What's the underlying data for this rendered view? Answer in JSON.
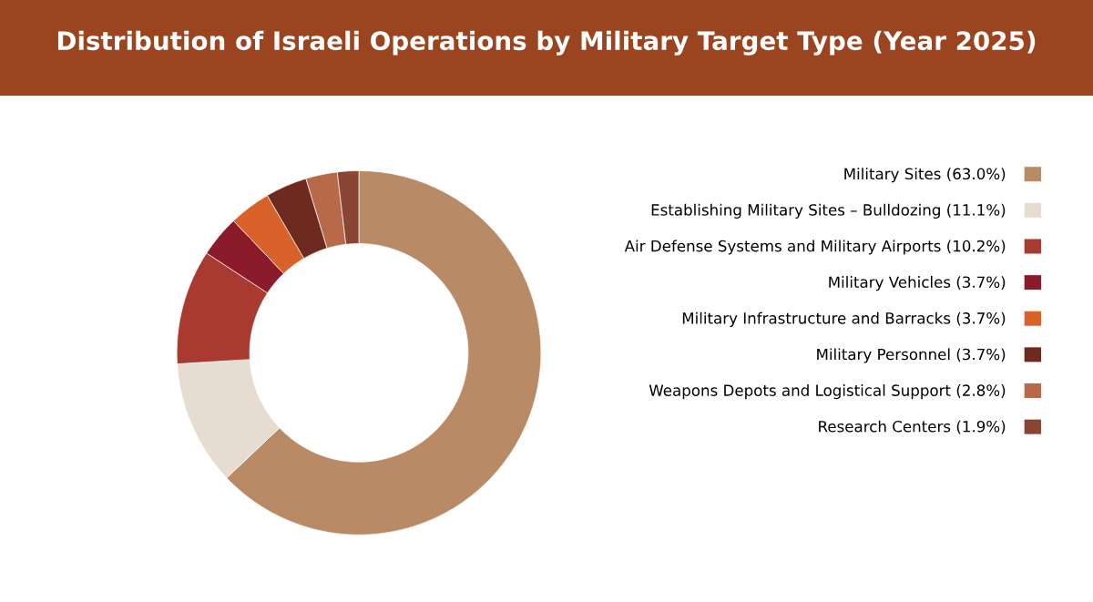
{
  "chart_data": {
    "type": "donut",
    "title": "Distribution of Israeli Operations by Military Target Type (Year 2025)",
    "categories": [
      "Military Sites (63.0%)",
      "Establishing Military Sites – Bulldozing (11.1%)",
      "Air Defense Systems and Military Airports (10.2%)",
      "Military Vehicles (3.7%)",
      "Military Infrastructure and Barracks (3.7%)",
      "Military Personnel (3.7%)",
      "Weapons Depots and Logistical Support (2.8%)",
      "Research Centers (1.9%)"
    ],
    "values": [
      63.0,
      11.1,
      10.2,
      3.7,
      3.7,
      3.7,
      2.8,
      1.9
    ],
    "colors": [
      "#b88a66",
      "#e6dcd1",
      "#a83a30",
      "#8b1a2a",
      "#d9622b",
      "#6e2a1e",
      "#b8694a",
      "#8a4535"
    ],
    "legend": "right"
  }
}
